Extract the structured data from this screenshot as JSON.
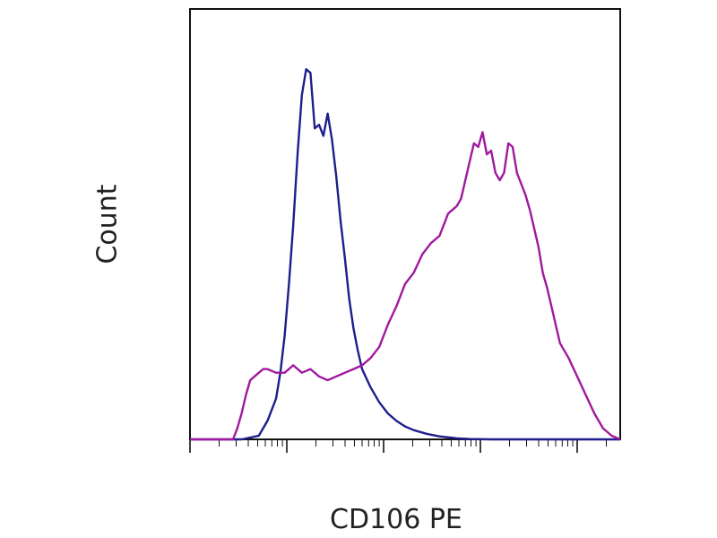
{
  "chart_data": {
    "type": "line",
    "chart_kind": "flow-cytometry-histogram",
    "xlabel": "CD106 PE",
    "ylabel": "Count",
    "title": "",
    "x_scale": "log",
    "xlim": [
      0,
      100
    ],
    "ylim": [
      0,
      100
    ],
    "grid": false,
    "legend": "none",
    "series": [
      {
        "color": "#1e1e8c",
        "x": [
          0,
          12,
          16,
          18,
          20,
          21,
          22,
          23,
          24,
          25,
          26,
          27,
          28,
          29,
          30,
          31,
          32,
          33,
          34,
          35,
          36,
          37,
          38,
          39,
          40,
          42,
          44,
          46,
          48,
          50,
          52,
          55,
          58,
          62,
          65,
          70,
          80,
          100
        ],
        "y": [
          0,
          0,
          1,
          5,
          11,
          18,
          28,
          42,
          58,
          77,
          93,
          100,
          99,
          84,
          85,
          82,
          88,
          81,
          71,
          59,
          49,
          38,
          30,
          24,
          19,
          14,
          10,
          7,
          5,
          3.5,
          2.5,
          1.5,
          0.8,
          0.3,
          0.1,
          0,
          0,
          0
        ]
      },
      {
        "color": "#a0189e",
        "x": [
          0,
          10,
          11,
          12,
          13,
          14,
          15,
          16,
          17,
          18,
          20,
          22,
          24,
          26,
          28,
          30,
          32,
          34,
          36,
          38,
          40,
          42,
          44,
          46,
          48,
          50,
          52,
          54,
          56,
          58,
          60,
          62,
          63,
          64,
          65,
          66,
          67,
          68,
          69,
          70,
          71,
          72,
          73,
          74,
          75,
          76,
          77,
          78,
          79,
          80,
          81,
          82,
          83,
          84,
          85,
          86,
          88,
          90,
          92,
          94,
          96,
          98,
          100
        ],
        "y": [
          0,
          0,
          3,
          7,
          12,
          16,
          17,
          18,
          19,
          19,
          18,
          18,
          20,
          18,
          19,
          17,
          16,
          17,
          18,
          19,
          20,
          22,
          25,
          31,
          36,
          42,
          45,
          50,
          53,
          55,
          61,
          63,
          65,
          70,
          75,
          80,
          79,
          83,
          77,
          78,
          72,
          70,
          72,
          80,
          79,
          72,
          69,
          66,
          62,
          57,
          52,
          45,
          41,
          36,
          31,
          26,
          22,
          17,
          12,
          7,
          3,
          1,
          0
        ]
      }
    ]
  }
}
